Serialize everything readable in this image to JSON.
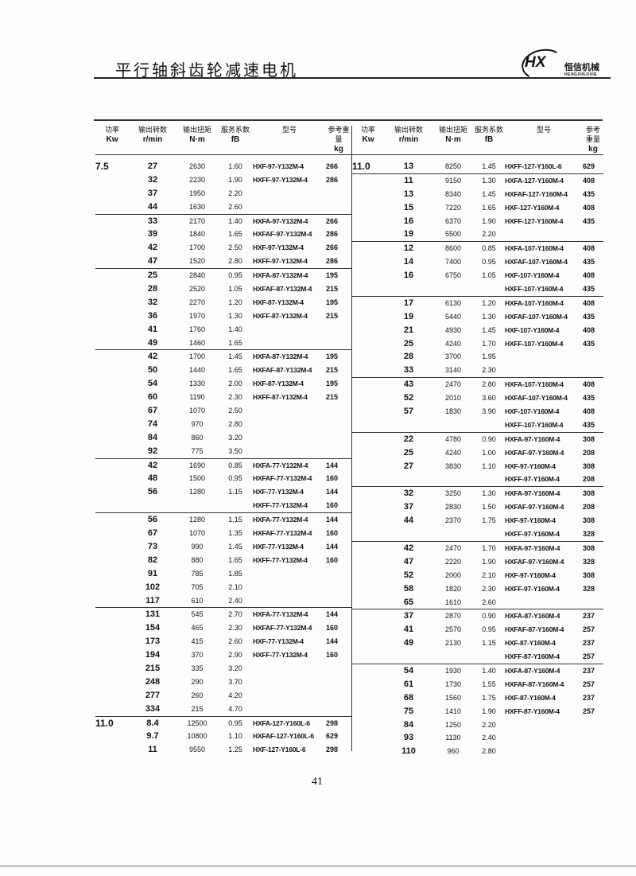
{
  "title": "平行轴斜齿轮减速电机",
  "logo": {
    "mark": "HX",
    "cn": "恒信机械",
    "en": "HENGXINJIXIE"
  },
  "headers": [
    {
      "cn": "功率",
      "unit": "Kw"
    },
    {
      "cn": "输出转数",
      "unit": "r/min"
    },
    {
      "cn": "输出扭矩",
      "unit": "N·m"
    },
    {
      "cn": "服务系数",
      "unit": "fB"
    },
    {
      "cn": "型号",
      "unit": ""
    },
    {
      "cn": "参考重量",
      "unit": "kg"
    }
  ],
  "left_table": [
    {
      "kw": "7.5",
      "rows": [
        [
          "27",
          "2630",
          "1.60",
          "HXF-97-Y132M-4",
          "266"
        ],
        [
          "32",
          "2230",
          "1.90",
          "HXFF-97-Y132M-4",
          "286"
        ],
        [
          "37",
          "1950",
          "2.20",
          "",
          ""
        ],
        [
          "44",
          "1630",
          "2.60",
          "",
          ""
        ]
      ]
    },
    {
      "kw": "",
      "rows": [
        [
          "33",
          "2170",
          "1.40",
          "HXFA-97-Y132M-4",
          "266"
        ],
        [
          "39",
          "1840",
          "1.65",
          "HXFAF-97-Y132M-4",
          "286"
        ],
        [
          "42",
          "1700",
          "2.50",
          "HXF-97-Y132M-4",
          "266"
        ],
        [
          "47",
          "1520",
          "2.80",
          "HXFF-97-Y132M-4",
          "286"
        ]
      ]
    },
    {
      "kw": "",
      "rows": [
        [
          "25",
          "2840",
          "0.95",
          "HXFA-87-Y132M-4",
          "195"
        ],
        [
          "28",
          "2520",
          "1.05",
          "HXFAF-87-Y132M-4",
          "215"
        ],
        [
          "32",
          "2270",
          "1.20",
          "HXF-87-Y132M-4",
          "195"
        ],
        [
          "36",
          "1970",
          "1.30",
          "HXFF-87-Y132M-4",
          "215"
        ],
        [
          "41",
          "1760",
          "1.40",
          "",
          ""
        ],
        [
          "49",
          "1460",
          "1.65",
          "",
          ""
        ]
      ]
    },
    {
      "kw": "",
      "rows": [
        [
          "42",
          "1700",
          "1.45",
          "HXFA-87-Y132M-4",
          "195"
        ],
        [
          "50",
          "1440",
          "1.65",
          "HXFAF-87-Y132M-4",
          "215"
        ],
        [
          "54",
          "1330",
          "2.00",
          "HXF-87-Y132M-4",
          "195"
        ],
        [
          "60",
          "1190",
          "2.30",
          "HXFF-87-Y132M-4",
          "215"
        ],
        [
          "67",
          "1070",
          "2.50",
          "",
          ""
        ],
        [
          "74",
          "970",
          "2.80",
          "",
          ""
        ],
        [
          "84",
          "860",
          "3.20",
          "",
          ""
        ],
        [
          "92",
          "775",
          "3.50",
          "",
          ""
        ]
      ]
    },
    {
      "kw": "",
      "rows": [
        [
          "42",
          "1690",
          "0.85",
          "HXFA-77-Y132M-4",
          "144"
        ],
        [
          "48",
          "1500",
          "0.95",
          "HXFAF-77-Y132M-4",
          "160"
        ],
        [
          "56",
          "1280",
          "1.15",
          "HXF-77-Y132M-4",
          "144"
        ],
        [
          "",
          "",
          "",
          "HXFF-77-Y132M-4",
          "160"
        ]
      ]
    },
    {
      "kw": "",
      "rows": [
        [
          "56",
          "1280",
          "1.15",
          "HXFA-77-Y132M-4",
          "144"
        ],
        [
          "67",
          "1070",
          "1.35",
          "HXFAF-77-Y132M-4",
          "160"
        ],
        [
          "73",
          "990",
          "1.45",
          "HXF-77-Y132M-4",
          "144"
        ],
        [
          "82",
          "880",
          "1.65",
          "HXFF-77-Y132M-4",
          "160"
        ],
        [
          "91",
          "785",
          "1.85",
          "",
          ""
        ],
        [
          "102",
          "705",
          "2.10",
          "",
          ""
        ],
        [
          "117",
          "610",
          "2.40",
          "",
          ""
        ]
      ]
    },
    {
      "kw": "",
      "rows": [
        [
          "131",
          "545",
          "2.70",
          "HXFA-77-Y132M-4",
          "144"
        ],
        [
          "154",
          "465",
          "2.30",
          "HXFAF-77-Y132M-4",
          "160"
        ],
        [
          "173",
          "415",
          "2.60",
          "HXF-77-Y132M-4",
          "144"
        ],
        [
          "194",
          "370",
          "2.90",
          "HXFF-77-Y132M-4",
          "160"
        ],
        [
          "215",
          "335",
          "3.20",
          "",
          ""
        ],
        [
          "248",
          "290",
          "3.70",
          "",
          ""
        ],
        [
          "277",
          "260",
          "4.20",
          "",
          ""
        ],
        [
          "334",
          "215",
          "4.70",
          "",
          ""
        ]
      ]
    },
    {
      "kw": "11.0",
      "rows": [
        [
          "8.4",
          "12500",
          "0.95",
          "HXFA-127-Y160L-6",
          "298"
        ],
        [
          "9.7",
          "10800",
          "1.10",
          "HXFAF-127-Y160L-6",
          "629"
        ],
        [
          "11",
          "9550",
          "1.25",
          "HXF-127-Y160L-6",
          "298"
        ]
      ]
    }
  ],
  "right_table": [
    {
      "kw": "11.0",
      "rows": [
        [
          "13",
          "8250",
          "1.45",
          "HXFF-127-Y160L-6",
          "629"
        ]
      ]
    },
    {
      "kw": "",
      "rows": [
        [
          "11",
          "9150",
          "1.30",
          "HXFA-127-Y160M-4",
          "408"
        ],
        [
          "13",
          "8340",
          "1.45",
          "HXFAF-127-Y160M-4",
          "435"
        ],
        [
          "15",
          "7220",
          "1.65",
          "HXF-127-Y160M-4",
          "408"
        ],
        [
          "16",
          "6370",
          "1.90",
          "HXFF-127-Y160M-4",
          "435"
        ],
        [
          "19",
          "5500",
          "2.20",
          "",
          ""
        ]
      ]
    },
    {
      "kw": "",
      "rows": [
        [
          "12",
          "8600",
          "0.85",
          "HXFA-107-Y160M-4",
          "408"
        ],
        [
          "14",
          "7400",
          "0.95",
          "HXFAF-107-Y160M-4",
          "435"
        ],
        [
          "16",
          "6750",
          "1.05",
          "HXF-107-Y160M-4",
          "408"
        ],
        [
          "",
          "",
          "",
          "HXFF-107-Y160M-4",
          "435"
        ]
      ]
    },
    {
      "kw": "",
      "rows": [
        [
          "17",
          "6130",
          "1.20",
          "HXFA-107-Y160M-4",
          "408"
        ],
        [
          "19",
          "5440",
          "1.30",
          "HXFAF-107-Y160M-4",
          "435"
        ],
        [
          "21",
          "4930",
          "1.45",
          "HXF-107-Y160M-4",
          "408"
        ],
        [
          "25",
          "4240",
          "1.70",
          "HXFF-107-Y160M-4",
          "435"
        ],
        [
          "28",
          "3700",
          "1.95",
          "",
          ""
        ],
        [
          "33",
          "3140",
          "2.30",
          "",
          ""
        ]
      ]
    },
    {
      "kw": "",
      "rows": [
        [
          "43",
          "2470",
          "2.80",
          "HXFA-107-Y160M-4",
          "408"
        ],
        [
          "52",
          "2010",
          "3.60",
          "HXFAF-107-Y160M-4",
          "435"
        ],
        [
          "57",
          "1830",
          "3.90",
          "HXF-107-Y160M-4",
          "408"
        ],
        [
          "",
          "",
          "",
          "HXFF-107-Y160M-4",
          "435"
        ]
      ]
    },
    {
      "kw": "",
      "rows": [
        [
          "22",
          "4780",
          "0.90",
          "HXFA-97-Y160M-4",
          "308"
        ],
        [
          "25",
          "4240",
          "1.00",
          "HXFAF-97-Y160M-4",
          "208"
        ],
        [
          "27",
          "3830",
          "1.10",
          "HXF-97-Y160M-4",
          "308"
        ],
        [
          "",
          "",
          "",
          "HXFF-97-Y160M-4",
          "208"
        ]
      ]
    },
    {
      "kw": "",
      "rows": [
        [
          "32",
          "3250",
          "1.30",
          "HXFA-97-Y160M-4",
          "308"
        ],
        [
          "37",
          "2830",
          "1.50",
          "HXFAF-97-Y160M-4",
          "208"
        ],
        [
          "44",
          "2370",
          "1.75",
          "HXF-97-Y160M-4",
          "308"
        ],
        [
          "",
          "",
          "",
          "HXFF-97-Y160M-4",
          "328"
        ]
      ]
    },
    {
      "kw": "",
      "rows": [
        [
          "42",
          "2470",
          "1.70",
          "HXFA-97-Y160M-4",
          "308"
        ],
        [
          "47",
          "2220",
          "1.90",
          "HXFAF-97-Y160M-4",
          "328"
        ],
        [
          "52",
          "2000",
          "2.10",
          "HXF-97-Y160M-4",
          "308"
        ],
        [
          "58",
          "1820",
          "2.30",
          "HXFF-97-Y160M-4",
          "328"
        ],
        [
          "65",
          "1610",
          "2.60",
          "",
          ""
        ]
      ]
    },
    {
      "kw": "",
      "rows": [
        [
          "37",
          "2870",
          "0.90",
          "HXFA-87-Y160M-4",
          "237"
        ],
        [
          "41",
          "2570",
          "0.95",
          "HXFAF-87-Y160M-4",
          "257"
        ],
        [
          "49",
          "2130",
          "1.15",
          "HXF-87-Y160M-4",
          "237"
        ],
        [
          "",
          "",
          "",
          "HXFF-87-Y160M-4",
          "257"
        ]
      ]
    },
    {
      "kw": "",
      "rows": [
        [
          "54",
          "1930",
          "1.40",
          "HXFA-87-Y160M-4",
          "237"
        ],
        [
          "61",
          "1730",
          "1.55",
          "HXFAF-87-Y160M-4",
          "257"
        ],
        [
          "68",
          "1560",
          "1.75",
          "HXF-87-Y160M-4",
          "237"
        ],
        [
          "75",
          "1410",
          "1.90",
          "HXFF-87-Y160M-4",
          "257"
        ],
        [
          "84",
          "1250",
          "2.20",
          "",
          ""
        ],
        [
          "93",
          "1130",
          "2.40",
          "",
          ""
        ],
        [
          "110",
          "960",
          "2.80",
          "",
          ""
        ]
      ]
    }
  ],
  "page_number": "41"
}
